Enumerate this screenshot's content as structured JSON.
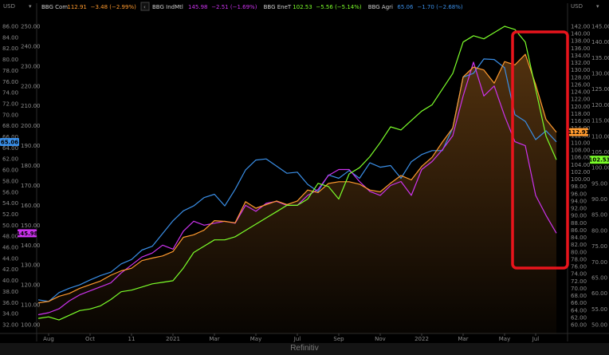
{
  "source_label": "Refinitiv",
  "currency": {
    "left": "USD",
    "right": "USD"
  },
  "legend": [
    {
      "name": "BBG Com",
      "value": "112.91",
      "change": "−3.48 (−2.99%)",
      "color": "#ff9a2e"
    },
    {
      "name": "BBG IndMtl",
      "value": "145.98",
      "change": "−2.51 (−1.69%)",
      "color": "#cc33ee"
    },
    {
      "name": "BBG EneT",
      "value": "102.53",
      "change": "−5.56 (−5.14%)",
      "color": "#7cff2a"
    },
    {
      "name": "BBG Agri",
      "value": "65.06",
      "change": "−1.70 (−2.68%)",
      "color": "#3a8ee6"
    }
  ],
  "chart_data": {
    "type": "line",
    "title": "",
    "x_ticks": [
      "Aug",
      "Oct",
      "11",
      "2021",
      "Mar",
      "May",
      "Jul",
      "Sep",
      "Nov",
      "2022",
      "Mar",
      "May",
      "Jul"
    ],
    "axes": {
      "agri": {
        "ticks": [
          "86.00",
          "84.00",
          "82.00",
          "80.00",
          "78.00",
          "76.00",
          "74.00",
          "72.00",
          "70.00",
          "68.00",
          "66.00",
          "64.00",
          "62.00",
          "60.00",
          "58.00",
          "56.00",
          "54.00",
          "52.00",
          "50.00",
          "48.00",
          "46.00",
          "44.00",
          "42.00",
          "40.00",
          "38.00",
          "36.00",
          "34.00",
          "32.00"
        ],
        "range": [
          31,
          87
        ]
      },
      "indmtl": {
        "ticks": [
          "250.00",
          "240.00",
          "230.00",
          "220.00",
          "210.00",
          "200.00",
          "190.00",
          "180.00",
          "170.00",
          "160.00",
          "150.00",
          "140.00",
          "130.00",
          "120.00",
          "110.00",
          "100.00"
        ],
        "range": [
          96,
          253
        ]
      },
      "com": {
        "ticks": [
          "142.00",
          "140.00",
          "138.00",
          "136.00",
          "134.00",
          "132.00",
          "130.00",
          "128.00",
          "126.00",
          "124.00",
          "122.00",
          "120.00",
          "118.00",
          "116.00",
          "114.00",
          "112.00",
          "110.00",
          "108.00",
          "106.00",
          "104.00",
          "102.00",
          "100.00",
          "98.00",
          "96.00",
          "94.00",
          "92.00",
          "90.00",
          "88.00",
          "86.00",
          "84.00",
          "82.00",
          "80.00",
          "78.00",
          "76.00",
          "74.00",
          "72.00",
          "70.00",
          "68.00",
          "66.00",
          "64.00",
          "62.00",
          "60.00"
        ],
        "range": [
          59,
          146
        ]
      },
      "eneT": {
        "ticks": [
          "145.00",
          "140.00",
          "135.00",
          "130.00",
          "125.00",
          "120.00",
          "115.00",
          "110.00",
          "105.00",
          "100.00",
          "95.00",
          "90.00",
          "85.00",
          "80.00",
          "75.00",
          "70.00",
          "65.00",
          "60.00",
          "55.00",
          "50.00"
        ],
        "range": [
          47,
          150
        ]
      }
    },
    "series": [
      {
        "name": "BBG Agri",
        "axis": "agri",
        "color": "#3a8ee6",
        "last": "65.06",
        "values": [
          36.5,
          36.2,
          37.8,
          38.6,
          39.2,
          40.1,
          40.9,
          41.5,
          43.0,
          43.8,
          45.5,
          46.2,
          48.5,
          50.8,
          52.6,
          53.5,
          55.0,
          55.6,
          53.5,
          56.5,
          60.0,
          61.8,
          62.0,
          60.7,
          59.4,
          59.6,
          57.4,
          56.1,
          59.1,
          58.5,
          59.9,
          58.5,
          61.3,
          60.5,
          60.8,
          58.5,
          61.5,
          62.8,
          63.5,
          63.5,
          67.6,
          76.8,
          77.5,
          80.1,
          80.0,
          78.5,
          70.0,
          68.8,
          65.5,
          67.1,
          65.1
        ]
      },
      {
        "name": "BBG IndMtl",
        "axis": "indmtl",
        "color": "#cc33ee",
        "last": "145.98",
        "values": [
          105,
          106,
          108,
          112,
          115,
          117,
          119,
          121,
          126,
          130,
          134,
          136,
          140,
          138,
          147,
          152,
          150,
          151,
          152,
          151,
          160,
          157,
          161,
          162,
          160,
          160,
          165,
          168,
          175,
          178,
          178,
          172,
          167,
          165,
          170,
          172,
          165,
          178,
          182,
          188,
          195,
          215,
          232,
          215,
          220,
          205,
          192,
          190,
          165,
          155,
          146
        ]
      },
      {
        "name": "BBG Com",
        "axis": "com",
        "color": "#ff9a2e",
        "last": "112.91",
        "area": true,
        "values": [
          66.0,
          66.4,
          67.8,
          68.6,
          70.0,
          71.0,
          72.0,
          73.6,
          74.8,
          75.5,
          77.6,
          78.3,
          78.9,
          80.1,
          84.0,
          84.7,
          86.0,
          88.6,
          88.4,
          88.0,
          93.8,
          92.0,
          93.0,
          94.0,
          93.0,
          94.0,
          97.0,
          96.3,
          98.8,
          99.3,
          99.3,
          98.6,
          97.0,
          96.5,
          98.9,
          101.0,
          99.8,
          103.5,
          106.0,
          110.2,
          114.1,
          128.1,
          130.8,
          130.0,
          126.4,
          132.3,
          131.4,
          134.3,
          126.0,
          116.4,
          112.9
        ]
      },
      {
        "name": "BBG EneT",
        "axis": "eneT",
        "color": "#7cff2a",
        "last": "102.53",
        "values": [
          52.0,
          52.5,
          51.5,
          53.0,
          54.5,
          55.0,
          56.0,
          58.0,
          60.5,
          61.0,
          62.0,
          63.0,
          63.5,
          64.0,
          68.0,
          73.0,
          75.0,
          77.0,
          77.0,
          78.0,
          80.0,
          82.0,
          84.0,
          86.0,
          88.0,
          88.0,
          90.0,
          95.0,
          94.0,
          90.0,
          98.0,
          100.0,
          103.5,
          108.0,
          113.0,
          112.0,
          115.0,
          118.0,
          120.0,
          125.0,
          130.0,
          140.0,
          142.0,
          141.0,
          143.0,
          145.0,
          144.0,
          140.0,
          125.0,
          110.0,
          102.5
        ]
      }
    ],
    "annotation": {
      "type": "highlight-box",
      "color": "#e8141c",
      "x_range": [
        "May",
        "Jul"
      ]
    }
  }
}
